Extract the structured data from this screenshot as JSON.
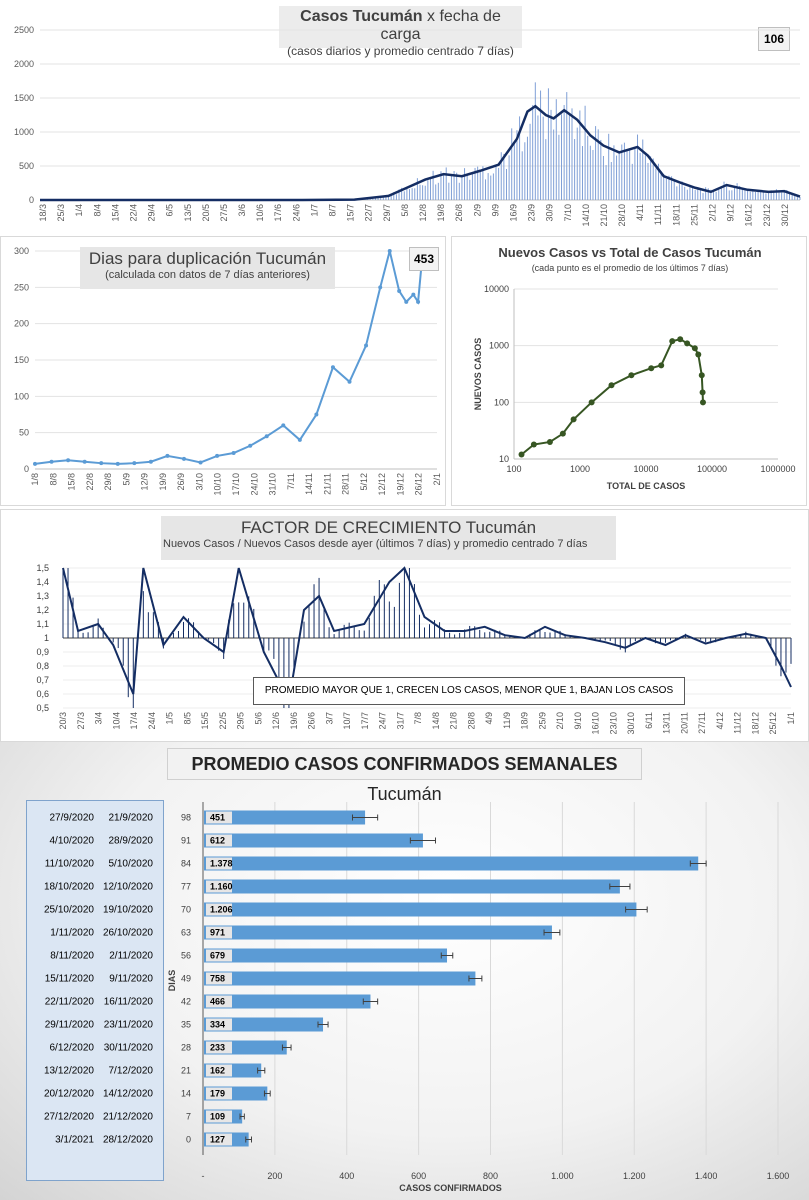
{
  "chart_data": [
    {
      "id": "daily",
      "type": "line",
      "title_bold": "Casos Tucumán",
      "title_rest": "x fecha de carga",
      "subtitle": "(casos diarios y promedio  centrado 7 días)",
      "badge": "106",
      "ylim": [
        0,
        2500
      ],
      "yticks": [
        0,
        500,
        1000,
        1500,
        2000,
        2500
      ],
      "x_labels": [
        "18/3",
        "25/3",
        "1/4",
        "8/4",
        "15/4",
        "22/4",
        "29/4",
        "6/5",
        "13/5",
        "20/5",
        "27/5",
        "3/6",
        "10/6",
        "17/6",
        "24/6",
        "1/7",
        "8/7",
        "15/7",
        "22/7",
        "29/7",
        "5/8",
        "12/8",
        "19/8",
        "26/8",
        "2/9",
        "9/9",
        "16/9",
        "23/9",
        "30/9",
        "7/10",
        "14/10",
        "21/10",
        "28/10",
        "4/11",
        "11/11",
        "18/11",
        "25/11",
        "2/12",
        "9/12",
        "16/12",
        "23/12",
        "30/12"
      ],
      "series": [
        {
          "role": "bars",
          "color": "#7f9fd6"
        },
        {
          "role": "average",
          "color": "#142d63"
        }
      ],
      "avg_points": [
        [
          0,
          0
        ],
        [
          100,
          0
        ],
        [
          120,
          5
        ],
        [
          133,
          60
        ],
        [
          140,
          180
        ],
        [
          147,
          300
        ],
        [
          154,
          380
        ],
        [
          161,
          350
        ],
        [
          168,
          430
        ],
        [
          175,
          520
        ],
        [
          182,
          900
        ],
        [
          186,
          1300
        ],
        [
          189,
          1380
        ],
        [
          193,
          1250
        ],
        [
          196,
          1200
        ],
        [
          200,
          1320
        ],
        [
          205,
          1180
        ],
        [
          210,
          950
        ],
        [
          215,
          800
        ],
        [
          221,
          700
        ],
        [
          228,
          780
        ],
        [
          232,
          650
        ],
        [
          238,
          350
        ],
        [
          244,
          260
        ],
        [
          250,
          180
        ],
        [
          256,
          120
        ],
        [
          262,
          220
        ],
        [
          270,
          150
        ],
        [
          278,
          120
        ],
        [
          284,
          130
        ],
        [
          290,
          50
        ]
      ]
    },
    {
      "id": "doubling",
      "type": "line",
      "title": "Dias para duplicación Tucumán",
      "subtitle": "(calculada con datos de 7 días anteriores)",
      "badge": "453",
      "ylim": [
        0,
        300
      ],
      "yticks": [
        0,
        50,
        100,
        150,
        200,
        250,
        300
      ],
      "x_labels": [
        "1/8",
        "8/8",
        "15/8",
        "22/8",
        "29/8",
        "5/9",
        "12/9",
        "19/9",
        "26/9",
        "3/10",
        "10/10",
        "17/10",
        "24/10",
        "31/10",
        "7/11",
        "14/11",
        "21/11",
        "28/11",
        "5/12",
        "12/12",
        "19/12",
        "26/12",
        "2/1"
      ],
      "series": [
        {
          "color": "#5b9bd5"
        }
      ],
      "points": [
        [
          0,
          7
        ],
        [
          7,
          10
        ],
        [
          14,
          12
        ],
        [
          21,
          10
        ],
        [
          28,
          8
        ],
        [
          35,
          7
        ],
        [
          42,
          8
        ],
        [
          49,
          10
        ],
        [
          56,
          18
        ],
        [
          63,
          14
        ],
        [
          70,
          9
        ],
        [
          77,
          18
        ],
        [
          84,
          22
        ],
        [
          91,
          32
        ],
        [
          98,
          45
        ],
        [
          105,
          60
        ],
        [
          112,
          40
        ],
        [
          119,
          75
        ],
        [
          126,
          140
        ],
        [
          133,
          120
        ],
        [
          140,
          170
        ],
        [
          146,
          250
        ],
        [
          150,
          300
        ],
        [
          154,
          245
        ],
        [
          157,
          230
        ],
        [
          160,
          240
        ],
        [
          162,
          230
        ],
        [
          164,
          300
        ]
      ]
    },
    {
      "id": "trajectory",
      "type": "scatter",
      "title": "Nuevos Casos vs Total de Casos Tucumán",
      "subtitle": "(cada punto es el promedio de los últimos 7 días)",
      "xlabel": "TOTAL DE CASOS",
      "ylabel": "NUEVOS  CASOS",
      "x_scale": "log",
      "y_scale": "log",
      "xticks": [
        "100",
        "1000",
        "10000",
        "100000",
        "1000000"
      ],
      "yticks": [
        "10",
        "100",
        "1000",
        "10000"
      ],
      "series": [
        {
          "color": "#375623"
        }
      ],
      "points": [
        [
          130,
          12
        ],
        [
          200,
          18
        ],
        [
          350,
          20
        ],
        [
          550,
          28
        ],
        [
          800,
          50
        ],
        [
          1500,
          100
        ],
        [
          3000,
          200
        ],
        [
          6000,
          300
        ],
        [
          12000,
          400
        ],
        [
          17000,
          450
        ],
        [
          25000,
          1200
        ],
        [
          33000,
          1300
        ],
        [
          42000,
          1100
        ],
        [
          55000,
          900
        ],
        [
          62000,
          700
        ],
        [
          70000,
          300
        ],
        [
          72000,
          150
        ],
        [
          73000,
          100
        ]
      ]
    },
    {
      "id": "growth",
      "type": "line",
      "title_light": "FACTOR DE CRECIMIENTO",
      "title_rest": "Tucumán",
      "subtitle": "Nuevos Casos  / Nuevos Casos desde ayer (últimos 7 días) y promedio  centrado 7 días",
      "annotation": "PROMEDIO MAYOR QUE 1, CRECEN LOS CASOS, MENOR QUE 1, BAJAN LOS CASOS",
      "ylim": [
        0.5,
        1.5
      ],
      "yticks": [
        "0,5",
        "0,6",
        "0,7",
        "0,8",
        "0,9",
        "1",
        "1,1",
        "1,2",
        "1,3",
        "1,4",
        "1,5"
      ],
      "x_labels": [
        "20/3",
        "27/3",
        "3/4",
        "10/4",
        "17/4",
        "24/4",
        "1/5",
        "8/5",
        "15/5",
        "22/5",
        "29/5",
        "5/6",
        "12/6",
        "19/6",
        "26/6",
        "3/7",
        "10/7",
        "17/7",
        "24/7",
        "31/7",
        "7/8",
        "14/8",
        "21/8",
        "28/8",
        "4/9",
        "11/9",
        "18/9",
        "25/9",
        "2/10",
        "9/10",
        "16/10",
        "23/10",
        "30/10",
        "6/11",
        "13/11",
        "20/11",
        "27/11",
        "4/12",
        "11/12",
        "18/12",
        "25/12",
        "1/1"
      ],
      "series": [
        {
          "color": "#142d63"
        }
      ],
      "points": [
        [
          0,
          1.5
        ],
        [
          3,
          1.05
        ],
        [
          7,
          1.1
        ],
        [
          10,
          0.95
        ],
        [
          14,
          0.6
        ],
        [
          16,
          1.5
        ],
        [
          20,
          0.95
        ],
        [
          24,
          1.15
        ],
        [
          28,
          1.0
        ],
        [
          32,
          0.9
        ],
        [
          35,
          1.5
        ],
        [
          40,
          0.9
        ],
        [
          45,
          0.55
        ],
        [
          48,
          1.2
        ],
        [
          51,
          1.3
        ],
        [
          54,
          1.05
        ],
        [
          60,
          1.1
        ],
        [
          65,
          1.4
        ],
        [
          68,
          1.5
        ],
        [
          72,
          1.15
        ],
        [
          76,
          1.05
        ],
        [
          80,
          1.05
        ],
        [
          84,
          1.08
        ],
        [
          88,
          1.02
        ],
        [
          92,
          1.0
        ],
        [
          96,
          1.08
        ],
        [
          100,
          1.02
        ],
        [
          104,
          1.0
        ],
        [
          108,
          0.97
        ],
        [
          112,
          0.93
        ],
        [
          116,
          1.0
        ],
        [
          120,
          0.95
        ],
        [
          124,
          1.02
        ],
        [
          128,
          0.96
        ],
        [
          132,
          1.0
        ],
        [
          136,
          1.03
        ],
        [
          140,
          1.0
        ],
        [
          143,
          0.8
        ],
        [
          145,
          0.65
        ]
      ]
    },
    {
      "id": "weekly",
      "type": "bar",
      "orientation": "horizontal",
      "title_bold": "PROMEDIO CASOS CONFIRMADOS SEMANALES",
      "title_rest": "Tucumán",
      "xlabel": "CASOS CONFIRMADOS",
      "ylabel": "DIAS",
      "xlim": [
        0,
        1600
      ],
      "xtick_labels": [
        "-",
        "200",
        "400",
        "600",
        "800",
        "1.000",
        "1.200",
        "1.400",
        "1.600"
      ],
      "color": "#5b9bd5",
      "rows": [
        {
          "week_end": "27/9/2020",
          "week_start": "21/9/2020",
          "dias": "98",
          "label": "451",
          "value": 451,
          "err": 35
        },
        {
          "week_end": "4/10/2020",
          "week_start": "28/9/2020",
          "dias": "91",
          "label": "612",
          "value": 612,
          "err": 35
        },
        {
          "week_end": "11/10/2020",
          "week_start": "5/10/2020",
          "dias": "84",
          "label": "1.378",
          "value": 1378,
          "err": 22
        },
        {
          "week_end": "18/10/2020",
          "week_start": "12/10/2020",
          "dias": "77",
          "label": "1.160",
          "value": 1160,
          "err": 28
        },
        {
          "week_end": "25/10/2020",
          "week_start": "19/10/2020",
          "dias": "70",
          "label": "1.206",
          "value": 1206,
          "err": 30
        },
        {
          "week_end": "1/11/2020",
          "week_start": "26/10/2020",
          "dias": "63",
          "label": "971",
          "value": 971,
          "err": 22
        },
        {
          "week_end": "8/11/2020",
          "week_start": "2/11/2020",
          "dias": "56",
          "label": "679",
          "value": 679,
          "err": 16
        },
        {
          "week_end": "15/11/2020",
          "week_start": "9/11/2020",
          "dias": "49",
          "label": "758",
          "value": 758,
          "err": 18
        },
        {
          "week_end": "22/11/2020",
          "week_start": "16/11/2020",
          "dias": "42",
          "label": "466",
          "value": 466,
          "err": 20
        },
        {
          "week_end": "29/11/2020",
          "week_start": "23/11/2020",
          "dias": "35",
          "label": "334",
          "value": 334,
          "err": 14
        },
        {
          "week_end": "6/12/2020",
          "week_start": "30/11/2020",
          "dias": "28",
          "label": "233",
          "value": 233,
          "err": 12
        },
        {
          "week_end": "13/12/2020",
          "week_start": "7/12/2020",
          "dias": "21",
          "label": "162",
          "value": 162,
          "err": 10
        },
        {
          "week_end": "20/12/2020",
          "week_start": "14/12/2020",
          "dias": "14",
          "label": "179",
          "value": 179,
          "err": 8
        },
        {
          "week_end": "27/12/2020",
          "week_start": "21/12/2020",
          "dias": "7",
          "label": "109",
          "value": 109,
          "err": 6
        },
        {
          "week_end": "3/1/2021",
          "week_start": "28/12/2020",
          "dias": "0",
          "label": "127",
          "value": 127,
          "err": 8
        }
      ]
    }
  ]
}
